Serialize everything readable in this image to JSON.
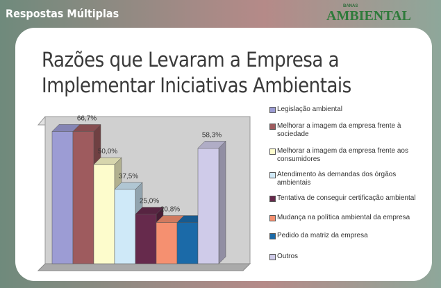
{
  "header": {
    "section": "Respostas Múltiplas",
    "logo_small": "BANAS",
    "logo": "AMBIENTAL"
  },
  "chart_data": {
    "type": "bar3d",
    "title": "Razões que Levaram a Empresa a Implementar Iniciativas Ambientais",
    "series": [
      {
        "name": "Legislação ambiental",
        "color": "#9c9cd4",
        "values": [
          66.7
        ]
      },
      {
        "name": "Melhorar a imagem da empresa frente à sociedade",
        "color": "#9e5b5e",
        "values": [
          66.7
        ],
        "value_labels": [
          "66,7%"
        ]
      },
      {
        "name": "Melhorar a imagem da empresa frente aos consumidores",
        "color": "#fdfccc",
        "values": [
          50.0
        ],
        "value_labels": [
          "50,0%"
        ]
      },
      {
        "name": "Atendimento às demandas dos órgãos ambientais",
        "color": "#cfe9f8",
        "values": [
          37.5
        ],
        "value_labels": [
          "37,5%"
        ]
      },
      {
        "name": "Tentativa de conseguir certificação ambiental",
        "color": "#662a4c",
        "values": [
          25.0
        ],
        "value_labels": [
          "25,0%"
        ]
      },
      {
        "name": "Mudança na política ambiental da empresa",
        "color": "#f59070",
        "values": [
          20.8
        ],
        "value_labels": [
          "20,8%"
        ]
      },
      {
        "name": "Pedido da matriz da empresa",
        "color": "#1b6aa8",
        "values": [
          20.8
        ]
      },
      {
        "name": "Outros",
        "color": "#cfcbe9",
        "values": [
          58.3
        ],
        "value_labels": [
          "58,3%"
        ]
      }
    ],
    "ylim": [
      0,
      70
    ]
  }
}
